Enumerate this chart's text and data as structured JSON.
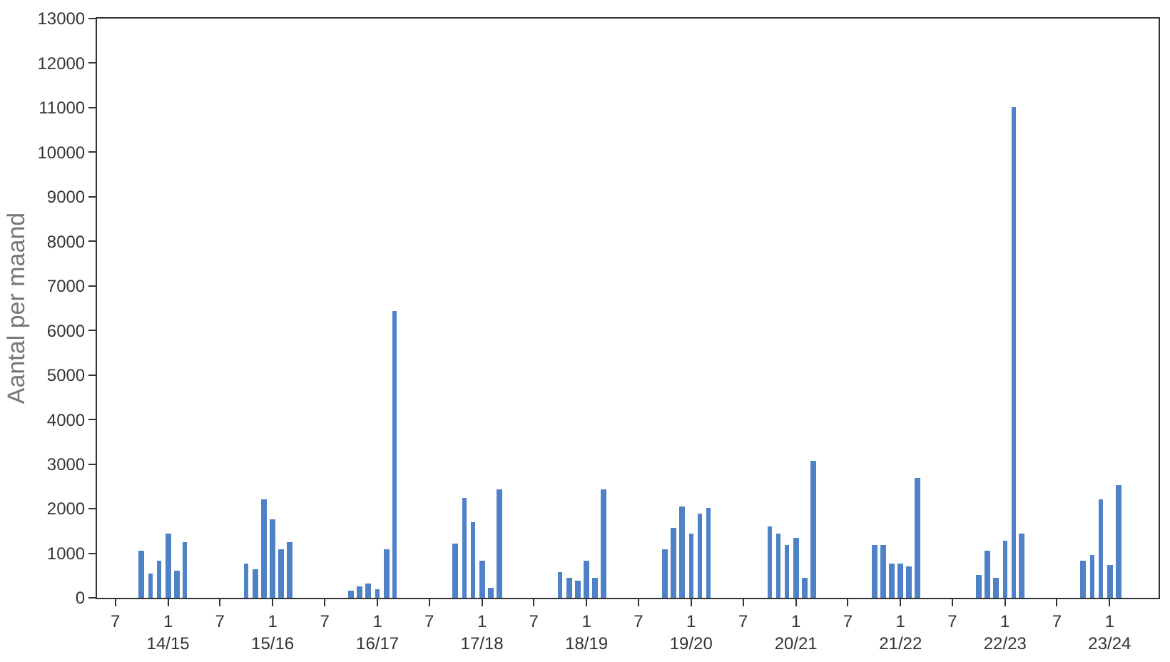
{
  "chart_data": {
    "type": "bar",
    "ylabel": "Aantal per maand",
    "x": [
      "2014-10",
      "2014-11",
      "2014-12",
      "2015-01",
      "2015-02",
      "2015-03",
      "2015-10",
      "2015-11",
      "2015-12",
      "2016-01",
      "2016-02",
      "2016-03",
      "2016-10",
      "2016-11",
      "2016-12",
      "2017-01",
      "2017-02",
      "2017-03",
      "2017-10",
      "2017-11",
      "2017-12",
      "2018-01",
      "2018-02",
      "2018-03",
      "2018-10",
      "2018-11",
      "2018-12",
      "2019-01",
      "2019-02",
      "2019-03",
      "2019-10",
      "2019-11",
      "2019-12",
      "2020-01",
      "2020-02",
      "2020-03",
      "2020-10",
      "2020-11",
      "2020-12",
      "2021-01",
      "2021-02",
      "2021-03",
      "2021-10",
      "2021-11",
      "2021-12",
      "2022-01",
      "2022-02",
      "2022-03",
      "2022-10",
      "2022-11",
      "2022-12",
      "2023-01",
      "2023-02",
      "2023-03",
      "2023-10",
      "2023-11",
      "2023-12",
      "2024-01",
      "2024-02"
    ],
    "values": [
      1050,
      530,
      820,
      1430,
      620,
      1240,
      780,
      650,
      2220,
      1760,
      1080,
      1240,
      160,
      260,
      310,
      200,
      1080,
      6450,
      1210,
      2250,
      1690,
      830,
      240,
      2430,
      570,
      460,
      390,
      830,
      460,
      2430,
      1090,
      1580,
      2060,
      1440,
      1890,
      2030,
      1610,
      1440,
      1170,
      1350,
      440,
      3070,
      1170,
      1170,
      780,
      780,
      700,
      2700,
      500,
      1060,
      460,
      1280,
      11000,
      1440,
      830,
      950,
      2220,
      730,
      2540
    ],
    "color": "#4f81c7",
    "xlim": [
      "2014-04-28",
      "2024-06-20"
    ],
    "xticks": [
      {
        "value": "2014-07-01",
        "label": "7"
      },
      {
        "value": "2015-01-01",
        "label": "1\n14/15"
      },
      {
        "value": "2015-07-01",
        "label": "7"
      },
      {
        "value": "2016-01-01",
        "label": "1\n15/16"
      },
      {
        "value": "2016-07-01",
        "label": "7"
      },
      {
        "value": "2017-01-01",
        "label": "1\n16/17"
      },
      {
        "value": "2017-07-01",
        "label": "7"
      },
      {
        "value": "2018-01-01",
        "label": "1\n17/18"
      },
      {
        "value": "2018-07-01",
        "label": "7"
      },
      {
        "value": "2019-01-01",
        "label": "1\n18/19"
      },
      {
        "value": "2019-07-01",
        "label": "7"
      },
      {
        "value": "2020-01-01",
        "label": "1\n19/20"
      },
      {
        "value": "2020-07-01",
        "label": "7"
      },
      {
        "value": "2021-01-01",
        "label": "1\n20/21"
      },
      {
        "value": "2021-07-01",
        "label": "7"
      },
      {
        "value": "2022-01-01",
        "label": "1\n21/22"
      },
      {
        "value": "2022-07-01",
        "label": "7"
      },
      {
        "value": "2023-01-01",
        "label": "1\n22/23"
      },
      {
        "value": "2023-07-01",
        "label": "7"
      },
      {
        "value": "2024-01-01",
        "label": "1\n23/24"
      }
    ],
    "ylim": [
      0,
      13000
    ],
    "yticks": [
      0,
      1000,
      2000,
      3000,
      4000,
      5000,
      6000,
      7000,
      8000,
      9000,
      10000,
      11000,
      12000,
      13000
    ]
  }
}
